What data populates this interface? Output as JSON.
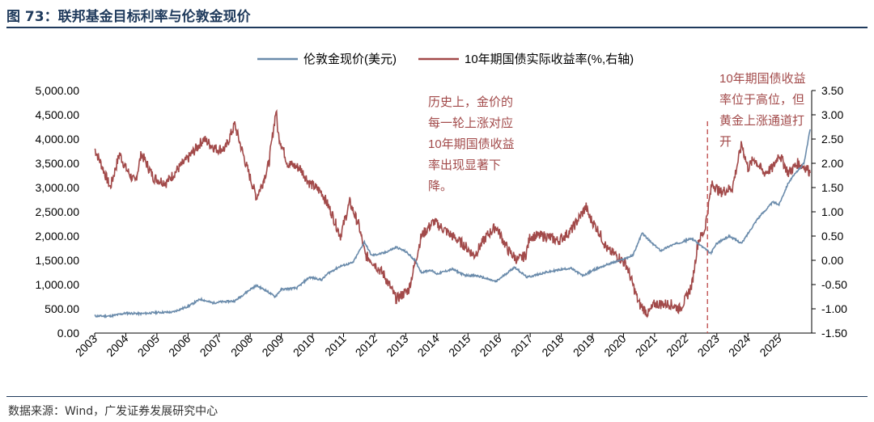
{
  "figure": {
    "title": "图 73：联邦基金目标利率与伦敦金现价",
    "source": "数据来源：Wind，广发证券发展研究中心"
  },
  "colors": {
    "gold": "#6a8bab",
    "yield": "#a24a4a",
    "annotation": "#a24a4a",
    "dashed": "#c25555"
  },
  "chart_data": {
    "type": "line",
    "title": "",
    "legend_position": "top-center",
    "x_ticks": [
      "2003",
      "2004",
      "2005",
      "2006",
      "2007",
      "2008",
      "2009",
      "2010",
      "2011",
      "2012",
      "2013",
      "2014",
      "2015",
      "2016",
      "2017",
      "2018",
      "2019",
      "2020",
      "2021",
      "2022",
      "2023",
      "2024",
      "2025"
    ],
    "xlim": [
      2003,
      2026.05
    ],
    "y_left": {
      "ticks": [
        "5,000.00",
        "4,500.00",
        "4,000.00",
        "3,500.00",
        "3,000.00",
        "2,500.00",
        "2,000.00",
        "1,500.00",
        "1,000.00",
        "500.00",
        "0.00"
      ],
      "ylim": [
        0,
        5000
      ]
    },
    "y_right": {
      "ticks": [
        "3.50",
        "3.00",
        "2.50",
        "2.00",
        "1.50",
        "1.00",
        "0.50",
        "0.00",
        "-0.50",
        "-1.00",
        "-1.50"
      ],
      "ylim": [
        -1.5,
        3.5
      ]
    },
    "series": [
      {
        "name": "伦敦金现价(美元)",
        "axis": "left",
        "points": [
          [
            2003.0,
            350
          ],
          [
            2003.5,
            350
          ],
          [
            2004.0,
            410
          ],
          [
            2004.5,
            400
          ],
          [
            2005.0,
            425
          ],
          [
            2005.5,
            430
          ],
          [
            2006.0,
            550
          ],
          [
            2006.4,
            700
          ],
          [
            2006.8,
            620
          ],
          [
            2007.0,
            640
          ],
          [
            2007.5,
            660
          ],
          [
            2008.0,
            900
          ],
          [
            2008.2,
            980
          ],
          [
            2008.5,
            880
          ],
          [
            2008.8,
            750
          ],
          [
            2009.0,
            900
          ],
          [
            2009.5,
            930
          ],
          [
            2009.9,
            1150
          ],
          [
            2010.3,
            1100
          ],
          [
            2010.5,
            1230
          ],
          [
            2010.9,
            1380
          ],
          [
            2011.3,
            1450
          ],
          [
            2011.67,
            1880
          ],
          [
            2011.9,
            1600
          ],
          [
            2012.3,
            1650
          ],
          [
            2012.7,
            1770
          ],
          [
            2013.0,
            1680
          ],
          [
            2013.3,
            1500
          ],
          [
            2013.5,
            1250
          ],
          [
            2013.8,
            1300
          ],
          [
            2014.0,
            1220
          ],
          [
            2014.5,
            1320
          ],
          [
            2014.9,
            1190
          ],
          [
            2015.3,
            1180
          ],
          [
            2015.9,
            1060
          ],
          [
            2016.5,
            1360
          ],
          [
            2016.9,
            1150
          ],
          [
            2017.5,
            1250
          ],
          [
            2017.9,
            1300
          ],
          [
            2018.3,
            1340
          ],
          [
            2018.7,
            1180
          ],
          [
            2019.0,
            1290
          ],
          [
            2019.5,
            1420
          ],
          [
            2019.9,
            1500
          ],
          [
            2020.3,
            1600
          ],
          [
            2020.6,
            2060
          ],
          [
            2020.9,
            1860
          ],
          [
            2021.2,
            1700
          ],
          [
            2021.5,
            1800
          ],
          [
            2022.2,
            1950
          ],
          [
            2022.8,
            1640
          ],
          [
            2023.0,
            1850
          ],
          [
            2023.4,
            2000
          ],
          [
            2023.8,
            1850
          ],
          [
            2024.0,
            2050
          ],
          [
            2024.3,
            2350
          ],
          [
            2024.8,
            2700
          ],
          [
            2025.0,
            2650
          ],
          [
            2025.3,
            3100
          ],
          [
            2025.6,
            3350
          ],
          [
            2025.8,
            3500
          ],
          [
            2026.0,
            4200
          ]
        ]
      },
      {
        "name": "10年期国债实际收益率(%,右轴)",
        "axis": "right",
        "points": [
          [
            2003.0,
            2.3
          ],
          [
            2003.2,
            2.0
          ],
          [
            2003.5,
            1.5
          ],
          [
            2003.8,
            2.2
          ],
          [
            2004.0,
            1.9
          ],
          [
            2004.3,
            1.6
          ],
          [
            2004.5,
            2.2
          ],
          [
            2004.9,
            1.7
          ],
          [
            2005.3,
            1.6
          ],
          [
            2005.7,
            1.9
          ],
          [
            2006.0,
            2.1
          ],
          [
            2006.5,
            2.5
          ],
          [
            2006.9,
            2.3
          ],
          [
            2007.2,
            2.3
          ],
          [
            2007.5,
            2.8
          ],
          [
            2007.9,
            1.9
          ],
          [
            2008.2,
            1.3
          ],
          [
            2008.4,
            1.6
          ],
          [
            2008.6,
            2.0
          ],
          [
            2008.83,
            3.1
          ],
          [
            2008.9,
            2.6
          ],
          [
            2009.2,
            2.0
          ],
          [
            2009.6,
            1.9
          ],
          [
            2009.9,
            1.6
          ],
          [
            2010.3,
            1.4
          ],
          [
            2010.6,
            1.0
          ],
          [
            2010.9,
            0.5
          ],
          [
            2011.2,
            1.2
          ],
          [
            2011.5,
            0.7
          ],
          [
            2011.7,
            0.1
          ],
          [
            2011.9,
            0.0
          ],
          [
            2012.3,
            -0.3
          ],
          [
            2012.7,
            -0.8
          ],
          [
            2012.9,
            -0.7
          ],
          [
            2013.1,
            -0.6
          ],
          [
            2013.5,
            0.5
          ],
          [
            2013.9,
            0.8
          ],
          [
            2014.3,
            0.6
          ],
          [
            2014.7,
            0.4
          ],
          [
            2014.9,
            0.3
          ],
          [
            2015.2,
            0.1
          ],
          [
            2015.6,
            0.5
          ],
          [
            2015.9,
            0.7
          ],
          [
            2016.3,
            0.2
          ],
          [
            2016.6,
            0.0
          ],
          [
            2016.85,
            0.1
          ],
          [
            2017.0,
            0.5
          ],
          [
            2017.5,
            0.5
          ],
          [
            2017.9,
            0.4
          ],
          [
            2018.3,
            0.6
          ],
          [
            2018.8,
            1.1
          ],
          [
            2018.9,
            0.9
          ],
          [
            2019.2,
            0.6
          ],
          [
            2019.5,
            0.2
          ],
          [
            2019.8,
            0.1
          ],
          [
            2020.1,
            -0.1
          ],
          [
            2020.25,
            -0.4
          ],
          [
            2020.5,
            -0.9
          ],
          [
            2020.8,
            -1.1
          ],
          [
            2021.0,
            -0.9
          ],
          [
            2021.5,
            -0.9
          ],
          [
            2021.8,
            -1.0
          ],
          [
            2022.0,
            -0.8
          ],
          [
            2022.2,
            -0.5
          ],
          [
            2022.4,
            0.4
          ],
          [
            2022.6,
            0.6
          ],
          [
            2022.85,
            1.6
          ],
          [
            2023.1,
            1.4
          ],
          [
            2023.5,
            1.5
          ],
          [
            2023.8,
            2.4
          ],
          [
            2024.0,
            1.9
          ],
          [
            2024.2,
            2.1
          ],
          [
            2024.5,
            1.8
          ],
          [
            2024.8,
            1.9
          ],
          [
            2025.0,
            2.2
          ],
          [
            2025.3,
            1.8
          ],
          [
            2025.6,
            2.0
          ],
          [
            2025.9,
            1.9
          ],
          [
            2026.0,
            1.8
          ]
        ]
      }
    ],
    "vertical_marker": {
      "x": 2022.7,
      "style": "dashed"
    },
    "annotations": [
      {
        "id": "left",
        "lines": [
          "历史上，金价的",
          "每一轮上涨对应",
          "10年期国债收益",
          "率出现显著下",
          "降。"
        ]
      },
      {
        "id": "right",
        "lines": [
          "10年期国债收益",
          "率位于高位，但",
          "黄金上涨通道打",
          "开"
        ]
      }
    ]
  }
}
